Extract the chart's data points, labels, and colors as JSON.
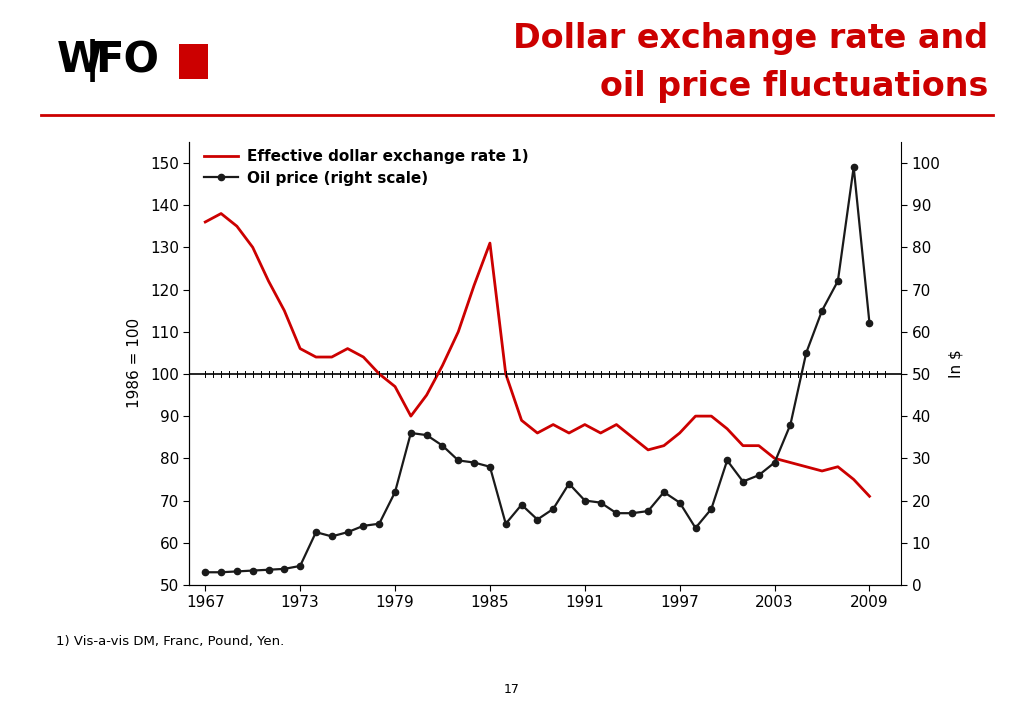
{
  "title_line1": "Dollar exchange rate and",
  "title_line2": "oil price fluctuations",
  "title_color": "#cc0000",
  "title_fontsize": 24,
  "footnote": "1) Vis-a-vis DM, Franc, Pound, Yen.",
  "page_number": "17",
  "ylabel_left": "1986 = 100",
  "ylabel_right": "In $",
  "legend_exchange": "Effective dollar exchange rate 1)",
  "legend_oil": "Oil price (right scale)",
  "exchange_color": "#cc0000",
  "oil_color": "#1a1a1a",
  "background_color": "#ffffff",
  "ylim_left": [
    50,
    155
  ],
  "ylim_right": [
    0,
    105
  ],
  "yticks_left": [
    50,
    60,
    70,
    80,
    90,
    100,
    110,
    120,
    130,
    140,
    150
  ],
  "yticks_right": [
    0,
    10,
    20,
    30,
    40,
    50,
    60,
    70,
    80,
    90,
    100
  ],
  "xticks": [
    1967,
    1973,
    1979,
    1985,
    1991,
    1997,
    2003,
    2009
  ],
  "xlim": [
    1966,
    2011
  ],
  "exchange_years": [
    1967,
    1968,
    1969,
    1970,
    1971,
    1972,
    1973,
    1974,
    1975,
    1976,
    1977,
    1978,
    1979,
    1980,
    1981,
    1982,
    1983,
    1984,
    1985,
    1986,
    1987,
    1988,
    1989,
    1990,
    1991,
    1992,
    1993,
    1994,
    1995,
    1996,
    1997,
    1998,
    1999,
    2000,
    2001,
    2002,
    2003,
    2004,
    2005,
    2006,
    2007,
    2008,
    2009
  ],
  "exchange_values": [
    136,
    138,
    135,
    130,
    122,
    115,
    106,
    104,
    104,
    106,
    104,
    100,
    97,
    90,
    95,
    102,
    110,
    121,
    131,
    100,
    89,
    86,
    88,
    86,
    88,
    86,
    88,
    85,
    82,
    83,
    86,
    90,
    90,
    87,
    83,
    83,
    80,
    79,
    78,
    77,
    78,
    75,
    71
  ],
  "oil_years": [
    1967,
    1968,
    1969,
    1970,
    1971,
    1972,
    1973,
    1974,
    1975,
    1976,
    1977,
    1978,
    1979,
    1980,
    1981,
    1982,
    1983,
    1984,
    1985,
    1986,
    1987,
    1988,
    1989,
    1990,
    1991,
    1992,
    1993,
    1994,
    1995,
    1996,
    1997,
    1998,
    1999,
    2000,
    2001,
    2002,
    2003,
    2004,
    2005,
    2006,
    2007,
    2008,
    2009
  ],
  "oil_values": [
    3.0,
    3.0,
    3.2,
    3.4,
    3.6,
    3.8,
    4.5,
    12.5,
    11.5,
    12.5,
    14.0,
    14.5,
    22.0,
    36.0,
    35.5,
    33.0,
    29.5,
    29.0,
    28.0,
    14.5,
    19.0,
    15.5,
    18.0,
    24.0,
    20.0,
    19.5,
    17.0,
    17.0,
    17.5,
    22.0,
    19.5,
    13.5,
    18.0,
    29.5,
    24.5,
    26.0,
    29.0,
    38.0,
    55.0,
    65.0,
    72.0,
    99.0,
    62.0
  ],
  "separator_color": "#cc0000",
  "wifo_color": "#000000",
  "red_square_color": "#cc0000"
}
